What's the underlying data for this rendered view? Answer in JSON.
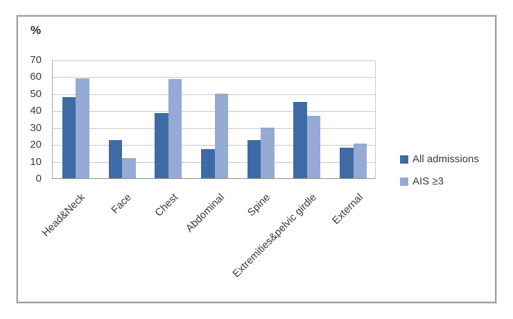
{
  "chart_data": {
    "type": "bar",
    "title": "",
    "ylabel": "%",
    "xlabel": "",
    "categories": [
      "Head&Neck",
      "Face",
      "Chest",
      "Abdominal",
      "Spine",
      "Extremities&pelvic girdle",
      "External"
    ],
    "series": [
      {
        "name": "All admissions",
        "color": "#3e6ba5",
        "values": [
          48,
          22.5,
          38.5,
          17,
          22.5,
          45,
          18
        ]
      },
      {
        "name": "AIS ≥3",
        "color": "#95aad4",
        "values": [
          59,
          12,
          58.5,
          50,
          30,
          37,
          20.5
        ]
      }
    ],
    "ylim": [
      0,
      70
    ],
    "yticks": [
      0,
      10,
      20,
      30,
      40,
      50,
      60,
      70
    ],
    "grid": true,
    "legend_position": "right",
    "colors": {
      "gridline": "#c8c8c8",
      "axis_text": "#3a3a3a",
      "frame_border": "#9c9c9c"
    }
  }
}
